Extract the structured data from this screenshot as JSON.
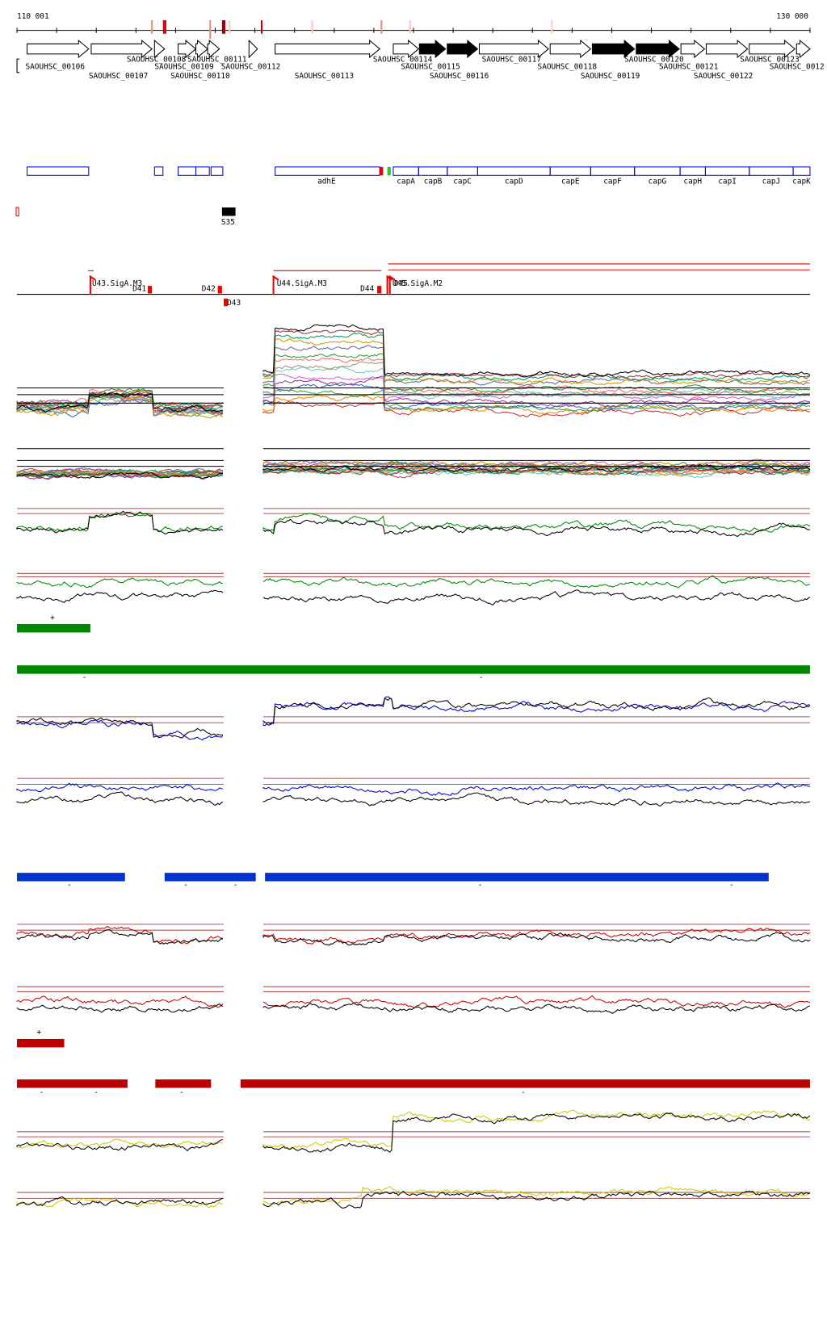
{
  "coordinates": {
    "start": "110 001",
    "end": "130 000"
  },
  "genes": [
    "SAOUHSC_00106",
    "SAOUHSC_00107",
    "SAOUHSC_00108",
    "SAOUHSC_00109",
    "SAOUHSC_00110",
    "SAOUHSC_00111",
    "SAOUHSC_00112",
    "SAOUHSC_00113",
    "SAOUHSC_00114",
    "SAOUHSC_00115",
    "SAOUHSC_00116",
    "SAOUHSC_00117",
    "SAOUHSC_00118",
    "SAOUHSC_00119",
    "SAOUHSC_00120",
    "SAOUHSC_00121",
    "SAOUHSC_00122",
    "SAOUHSC_00123",
    "SAOUHSC_0012"
  ],
  "operons": [
    "adhE",
    "capA",
    "capB",
    "capC",
    "capD",
    "capE",
    "capF",
    "capG",
    "capH",
    "capI",
    "capJ",
    "capK"
  ],
  "terminator": "S35",
  "promoters": [
    "U43.SigA.M3",
    "D41",
    "D42",
    "D43",
    "U44.SigA.M3",
    "D44",
    "U45.SigA.M2",
    "D45"
  ],
  "strand_labels": [
    "+",
    "-",
    "-",
    "-",
    "-",
    "-",
    "-",
    "-",
    "+",
    "-",
    "-",
    "-",
    "-"
  ]
}
